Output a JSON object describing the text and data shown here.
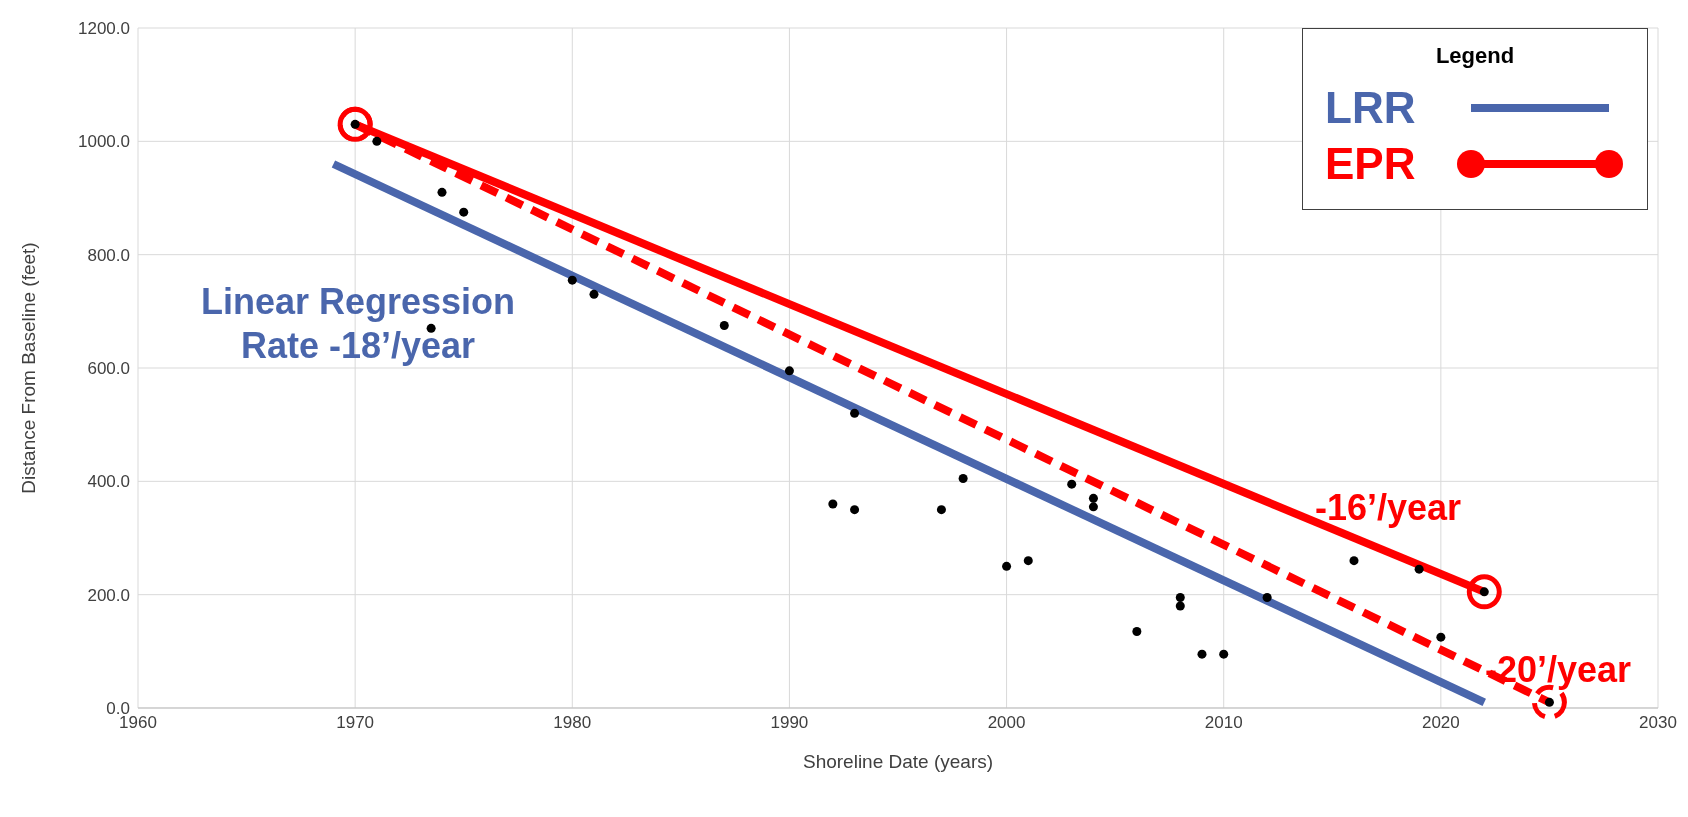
{
  "chart_data": {
    "type": "scatter",
    "xlabel": "Shoreline Date (years)",
    "ylabel": "Distance From Baseline (feet)",
    "legend_title": "Legend",
    "legend": "top right",
    "grid": true,
    "marker": "circle",
    "xlim": [
      1960,
      2030
    ],
    "xticks": [
      1960,
      1970,
      1980,
      1990,
      2000,
      2010,
      2020,
      2030
    ],
    "ylim": [
      0,
      1200
    ],
    "yticks": [
      {
        "value": 0,
        "label": "0.0"
      },
      {
        "value": 200,
        "label": "200.0"
      },
      {
        "value": 400,
        "label": "400.0"
      },
      {
        "value": 600,
        "label": "600.0"
      },
      {
        "value": 800,
        "label": "800.0"
      },
      {
        "value": 1000,
        "label": "1000.0"
      },
      {
        "value": 1200,
        "label": "1200.0"
      }
    ],
    "series": [
      {
        "color": "#000000",
        "x": [
          1970,
          1971,
          1974,
          1975,
          1973.5,
          1980,
          1981,
          1987,
          1990,
          1993,
          1992,
          1993,
          1997,
          1998,
          2000,
          2001,
          2003,
          2004,
          2004,
          2006,
          2008,
          2008,
          2009,
          2010,
          2012,
          2016,
          2019,
          2022,
          2020,
          2025
        ],
        "values": [
          1030,
          1000,
          910,
          875,
          670,
          755,
          730,
          675,
          595,
          520,
          360,
          350,
          350,
          405,
          250,
          260,
          395,
          370,
          355,
          135,
          195,
          180,
          95,
          95,
          195,
          260,
          245,
          205,
          125,
          10
        ]
      },
      {
        "type": "line",
        "name": "LRR",
        "color": "#4a66ac",
        "marker": "none",
        "line_style": "solid",
        "x": [
          1969,
          2022
        ],
        "values": [
          960,
          10
        ]
      },
      {
        "type": "line",
        "name": "EPR",
        "color": "#ff0000",
        "marker": "circle",
        "line_style": "solid",
        "x": [
          1970,
          2022
        ],
        "values": [
          1030,
          205
        ]
      },
      {
        "type": "line",
        "color": "#ff0000",
        "marker": "circle",
        "line_style": "dashed",
        "x": [
          1970,
          2025
        ],
        "values": [
          1030,
          10
        ]
      }
    ],
    "annotations": [
      "Linear Regression Rate -18’/year",
      "-16’/year",
      "-20’/year"
    ]
  }
}
